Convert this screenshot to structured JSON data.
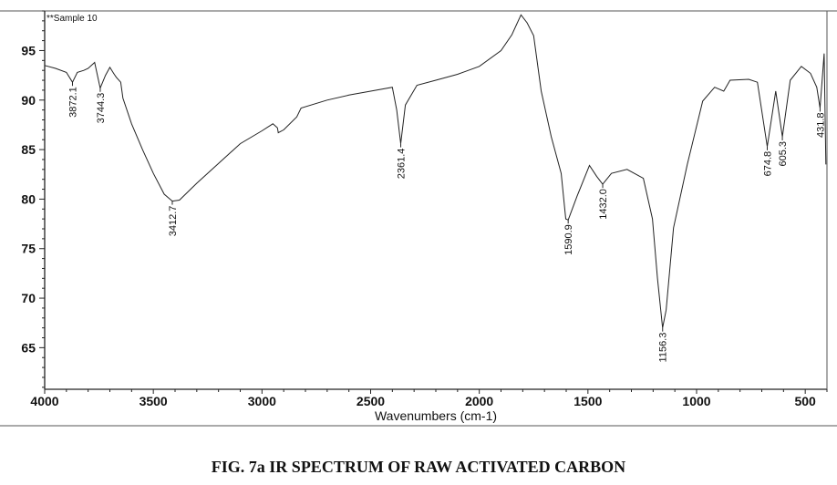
{
  "chart_data": {
    "type": "line",
    "title": "",
    "legend_text": "**Sample 10",
    "xlabel": "Wavenumbers (cm-1)",
    "ylabel": "",
    "xlim": [
      4000,
      400
    ],
    "ylim": [
      60.8,
      99
    ],
    "x_reversed": true,
    "grid": false,
    "xticks": [
      4000,
      3500,
      3000,
      2500,
      2000,
      1500,
      1000,
      500
    ],
    "yticks": [
      65,
      70,
      75,
      80,
      85,
      90,
      95
    ],
    "line_color": "#222222",
    "series": [
      {
        "x": [
          4000,
          3950,
          3900,
          3872.1,
          3850,
          3820,
          3800,
          3770,
          3744.3,
          3720,
          3700,
          3680,
          3670,
          3650,
          3640,
          3600,
          3550,
          3500,
          3450,
          3412.7,
          3380,
          3300,
          3200,
          3100,
          3000,
          2950,
          2929,
          2925,
          2900,
          2840,
          2820,
          2700,
          2600,
          2500,
          2400,
          2380,
          2361.4,
          2340,
          2287,
          2200,
          2100,
          2000,
          1900,
          1850,
          1808,
          1780,
          1750,
          1715,
          1669,
          1623,
          1602,
          1590.9,
          1550,
          1493,
          1460,
          1432.0,
          1392,
          1320,
          1245,
          1203,
          1180,
          1156.3,
          1140,
          1106,
          1043,
          972,
          917,
          875,
          846,
          760,
          720,
          674.8,
          636,
          605.3,
          569,
          518,
          476,
          447,
          431.8,
          413,
          405
        ],
        "y": [
          93.5,
          93.2,
          92.8,
          91.8,
          92.8,
          93.0,
          93.2,
          93.8,
          91.2,
          92.5,
          93.3,
          92.6,
          92.3,
          91.8,
          90.2,
          87.6,
          85.0,
          82.6,
          80.5,
          79.8,
          79.9,
          81.6,
          83.6,
          85.6,
          86.9,
          87.6,
          87.2,
          86.7,
          87.0,
          88.3,
          89.2,
          90.0,
          90.5,
          90.9,
          91.3,
          89.0,
          85.6,
          89.5,
          91.5,
          92.0,
          92.6,
          93.4,
          95.0,
          96.6,
          98.6,
          97.8,
          96.5,
          90.9,
          86.3,
          82.6,
          78.0,
          77.9,
          80.3,
          83.4,
          82.3,
          81.5,
          82.6,
          83.0,
          82.1,
          78.0,
          72.0,
          67.0,
          68.8,
          77.1,
          83.5,
          89.9,
          91.3,
          90.9,
          92.0,
          92.1,
          91.8,
          85.3,
          90.9,
          86.3,
          92.0,
          93.4,
          92.7,
          91.3,
          89.2,
          94.7,
          83.5
        ]
      }
    ],
    "annotations": [
      "3872.1",
      "3744.3",
      "3412.7",
      "2361.4",
      "1590.9",
      "1432.0",
      "1156.3",
      "674.8",
      "605.3",
      "431.8"
    ],
    "annotation_x": [
      3872.1,
      3744.3,
      3412.7,
      2361.4,
      1590.9,
      1432.0,
      1156.3,
      674.8,
      605.3,
      431.8
    ],
    "annotation_y": [
      91.8,
      91.2,
      79.8,
      85.6,
      77.9,
      81.5,
      67.0,
      85.3,
      86.3,
      89.2
    ]
  },
  "caption": "FIG. 7a IR SPECTRUM OF RAW ACTIVATED CARBON"
}
